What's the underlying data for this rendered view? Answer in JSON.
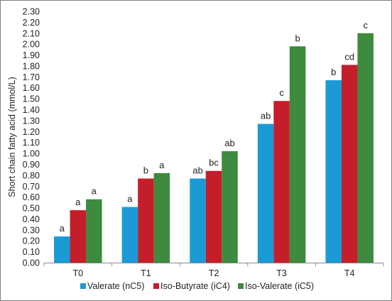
{
  "chart_data": {
    "type": "bar",
    "ylabel": "Short chain fatty acid (mmol/L)",
    "xlabel": "",
    "ylim": [
      0,
      2.3
    ],
    "yticks": [
      "0.00",
      "0.10",
      "0.20",
      "0.30",
      "0.40",
      "0.50",
      "0.60",
      "0.70",
      "0.80",
      "0.90",
      "1.00",
      "1.10",
      "1.20",
      "1.30",
      "1.40",
      "1.50",
      "1.60",
      "1.70",
      "1.80",
      "1.90",
      "2.00",
      "2.10",
      "2.20",
      "2.30"
    ],
    "grid": "none",
    "legend_position": "bottom",
    "categories": [
      "T0",
      "T1",
      "T2",
      "T3",
      "T4"
    ],
    "series": [
      {
        "name": "Valerate (nC5)",
        "color": "#1b9ad6",
        "values": [
          0.24,
          0.51,
          0.77,
          1.27,
          1.67
        ],
        "labels": [
          "a",
          "a",
          "ab",
          "ab",
          "b"
        ]
      },
      {
        "name": "Iso-Butyrate (iC4)",
        "color": "#c41e2a",
        "values": [
          0.48,
          0.77,
          0.84,
          1.48,
          1.81
        ],
        "labels": [
          "a",
          "b",
          "bc",
          "c",
          "cd"
        ]
      },
      {
        "name": "Iso-Valerate (iC5)",
        "color": "#3e8a3e",
        "values": [
          0.58,
          0.82,
          1.02,
          1.98,
          2.1
        ],
        "labels": [
          "a",
          "a",
          "ab",
          "b",
          "c"
        ]
      }
    ]
  }
}
